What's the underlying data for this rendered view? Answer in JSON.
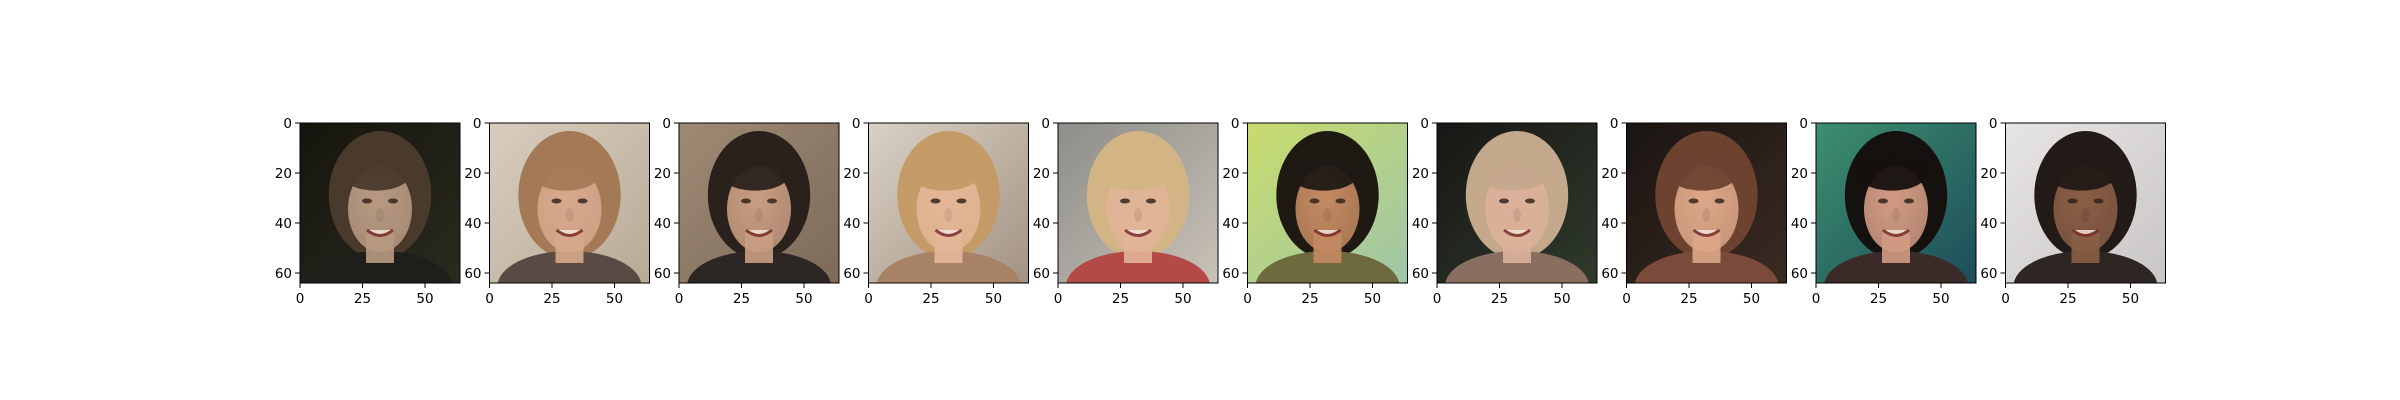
{
  "figure": {
    "panel_count": 10,
    "image_extent": [
      0,
      64
    ],
    "x_ticks": [
      "0",
      "25",
      "50"
    ],
    "y_ticks": [
      "0",
      "20",
      "40",
      "60"
    ],
    "panels": [
      {
        "subject": "face-dark-hair-dark-background",
        "colors": {
          "bg": "#15150f",
          "bg2": "#2b2a20",
          "hair": "#4a3a2c",
          "skin": "#b89a82",
          "cloth": "#1e1e1a"
        }
      },
      {
        "subject": "face-light-hair-laughing",
        "colors": {
          "bg": "#d8cdbf",
          "bg2": "#b8aa96",
          "hair": "#a47a56",
          "skin": "#d7a88c",
          "cloth": "#5a4a44"
        }
      },
      {
        "subject": "face-dark-hair-smiling-man",
        "colors": {
          "bg": "#9e8a74",
          "bg2": "#7d6a58",
          "hair": "#2a211c",
          "skin": "#c99e82",
          "cloth": "#2c2724"
        }
      },
      {
        "subject": "face-blonde-long-hair-woman",
        "colors": {
          "bg": "#d9d1c4",
          "bg2": "#a39384",
          "hair": "#c49a66",
          "skin": "#e3b797",
          "cloth": "#a88264"
        }
      },
      {
        "subject": "face-blonde-short-hair-woman",
        "colors": {
          "bg": "#8d8d8a",
          "bg2": "#c9c2b6",
          "hair": "#d3b585",
          "skin": "#e1b497",
          "cloth": "#b34a48"
        }
      },
      {
        "subject": "face-dark-hair-green-background",
        "colors": {
          "bg": "#c9dc6c",
          "bg2": "#9fc6a8",
          "hair": "#1f1914",
          "skin": "#c48a62",
          "cloth": "#6f6a3d"
        }
      },
      {
        "subject": "face-blonde-woman-smiling",
        "colors": {
          "bg": "#171714",
          "bg2": "#2f3a2c",
          "hair": "#c4a88c",
          "skin": "#dcb19a",
          "cloth": "#8a6f60"
        }
      },
      {
        "subject": "face-brown-hair-woman",
        "colors": {
          "bg": "#1a1512",
          "bg2": "#3a2a22",
          "hair": "#6d4330",
          "skin": "#dba788",
          "cloth": "#7a4a3a"
        }
      },
      {
        "subject": "face-dark-hair-teal-background",
        "colors": {
          "bg": "#3d8f6e",
          "bg2": "#1d4d5a",
          "hair": "#15110f",
          "skin": "#d29c84",
          "cloth": "#3a2a28"
        }
      },
      {
        "subject": "face-dark-hair-light-background",
        "colors": {
          "bg": "#e7e5e4",
          "bg2": "#c9c6c6",
          "hair": "#221a16",
          "skin": "#8a5e46",
          "cloth": "#2e2622"
        }
      }
    ]
  }
}
